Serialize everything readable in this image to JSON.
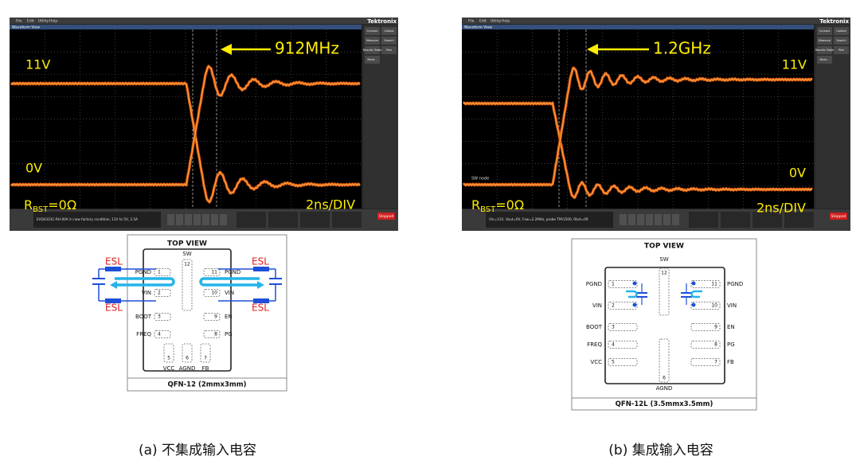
{
  "figure": {
    "panels": [
      {
        "scope": {
          "menu": [
            "File",
            "Edit",
            "Utility",
            "Help"
          ],
          "brand": "Tektronix",
          "view_title": "Waveform View",
          "buttons": [
            "Cursors",
            "Callout",
            "Measure",
            "Search",
            "Results Table",
            "Plot",
            "More..."
          ],
          "note": "EVQ4323C-RH-00A in new factory condition, 11V to 5V, 2.5A",
          "status": "Stopped",
          "frequency": "912MHz",
          "high_level": "11V",
          "low_level": "0V",
          "resistor": {
            "symbol": "R",
            "subscript": "BST",
            "value": "=0Ω"
          },
          "timebase": "2ns/DIV"
        },
        "package": {
          "title": "TOP VIEW",
          "top_pins": [
            {
              "label": "SW",
              "number": "12"
            }
          ],
          "left_pins": [
            {
              "label": "PGND",
              "number": "1"
            },
            {
              "label": "VIN",
              "number": "2"
            },
            {
              "label": "BOOT",
              "number": "3"
            },
            {
              "label": "FREQ",
              "number": "4"
            }
          ],
          "right_pins": [
            {
              "label": "PGND",
              "number": "11"
            },
            {
              "label": "VIN",
              "number": "10"
            },
            {
              "label": "EN",
              "number": "9"
            },
            {
              "label": "PG",
              "number": "8"
            }
          ],
          "bottom_pins": [
            {
              "label": "VCC",
              "number": "5"
            },
            {
              "label": "AGND",
              "number": "6"
            },
            {
              "label": "FB",
              "number": "7"
            }
          ],
          "esl_labels": [
            "ESL",
            "ESL",
            "ESL",
            "ESL"
          ],
          "name": "QFN-12 (2mmx3mm)"
        },
        "caption": "(a) 不集成输入电容"
      },
      {
        "scope": {
          "menu": [
            "File",
            "Edit",
            "Utility",
            "Help"
          ],
          "brand": "Tektronix",
          "view_title": "Waveform View",
          "buttons": [
            "Cursors",
            "Callout",
            "Measure",
            "Search",
            "Results Table",
            "Plot",
            "More..."
          ],
          "note": "Vin=11V, Vout=0V, Fsw=2.2MHz, probe TPA1500, Rbst=0R",
          "status": "Stopped",
          "frequency": "1.2GHz",
          "high_level": "11V",
          "low_level": "0V",
          "resistor": {
            "symbol": "R",
            "subscript": "BST",
            "value": "=0Ω"
          },
          "timebase": "2ns/DIV",
          "node_label": "SW node"
        },
        "package": {
          "title": "TOP VIEW",
          "top_pins": [
            {
              "label": "SW",
              "number": "12"
            }
          ],
          "left_pins": [
            {
              "label": "PGND",
              "number": "1"
            },
            {
              "label": "VIN",
              "number": "2"
            },
            {
              "label": "BOOT",
              "number": "3"
            },
            {
              "label": "FREQ",
              "number": "4"
            },
            {
              "label": "VCC",
              "number": "5"
            }
          ],
          "right_pins": [
            {
              "label": "PGND",
              "number": "11"
            },
            {
              "label": "VIN",
              "number": "10"
            },
            {
              "label": "EN",
              "number": "9"
            },
            {
              "label": "PG",
              "number": "8"
            },
            {
              "label": "FB",
              "number": "7"
            }
          ],
          "bottom_pins": [
            {
              "label": "AGND",
              "number": "6"
            }
          ],
          "name": "QFN-12L (3.5mmx3.5mm)"
        },
        "caption": "(b) 集成输入电容"
      }
    ]
  }
}
